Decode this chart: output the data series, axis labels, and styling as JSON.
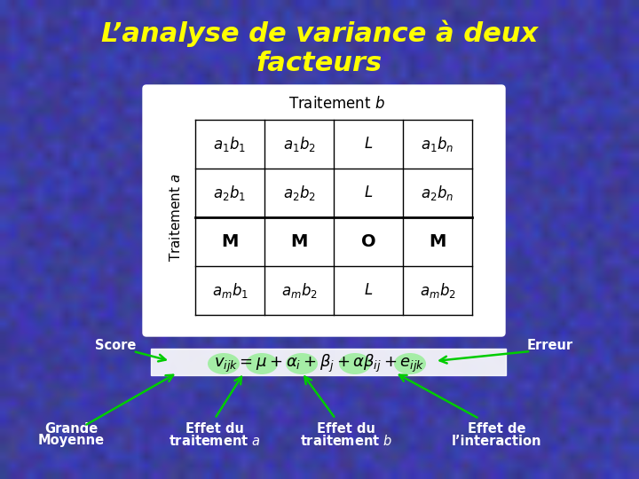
{
  "title_line1": "L’analyse de variance à deux",
  "title_line2": "facteurs",
  "title_color": "#FFFF00",
  "bg_color": "#4040AA",
  "table_header": "Traitement b",
  "table_row_label": "Traitement a",
  "score_label": "Score",
  "erreur_label": "Erreur",
  "arrow_color": "#00CC00",
  "label_color": "#FFFFFF",
  "table_bg": "#FFFFFF",
  "highlight_color": "#99EE99",
  "formula_bg": "#FFFFFF",
  "grid_color": "#000000"
}
